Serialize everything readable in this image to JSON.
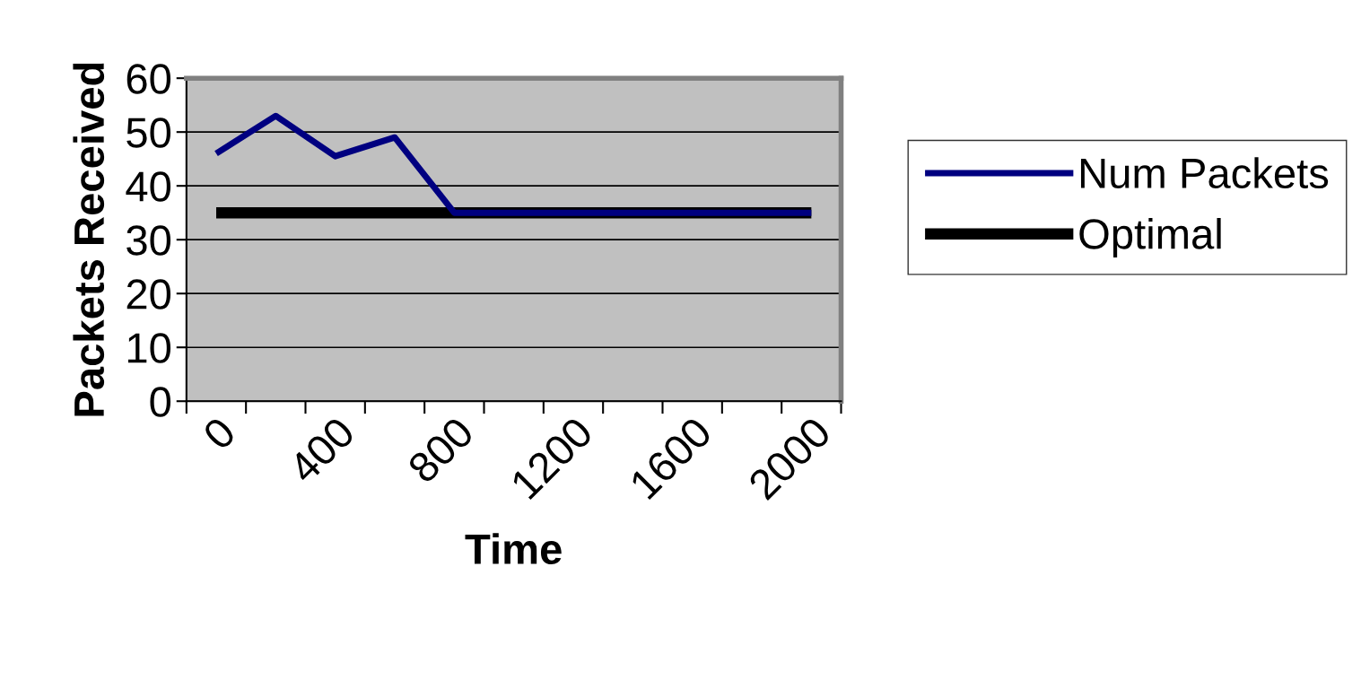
{
  "chart_data": {
    "type": "line",
    "xlabel": "Time",
    "ylabel": "Packets Received",
    "x": [
      0,
      200,
      400,
      600,
      800,
      1000,
      1200,
      1400,
      1600,
      1800,
      2000
    ],
    "series": [
      {
        "name": "Num Packets",
        "color": "#000080",
        "values": [
          46,
          53,
          45.5,
          49,
          35,
          35,
          35,
          35,
          35,
          35,
          35
        ]
      },
      {
        "name": "Optimal",
        "color": "#000000",
        "values": [
          35,
          35,
          35,
          35,
          35,
          35,
          35,
          35,
          35,
          35,
          35
        ]
      }
    ],
    "xlim": [
      -100,
      2100
    ],
    "xticks": [
      0,
      400,
      800,
      1200,
      1600,
      2000,
      {
        "value": -100,
        "label": null
      },
      {
        "value": 100,
        "label": null
      },
      {
        "value": 300,
        "label": null
      },
      {
        "value": 500,
        "label": null
      },
      {
        "value": 700,
        "label": null
      },
      {
        "value": 900,
        "label": null
      },
      {
        "value": 1100,
        "label": null
      },
      {
        "value": 1300,
        "label": null
      },
      {
        "value": 1500,
        "label": null
      },
      {
        "value": 1700,
        "label": null
      },
      {
        "value": 1900,
        "label": null
      },
      {
        "value": 2100,
        "label": null
      }
    ],
    "ylim": [
      0,
      60
    ],
    "yticks": [
      0,
      10,
      20,
      30,
      40,
      50,
      60
    ],
    "grid": "y",
    "legend": "right",
    "marker": "none",
    "line_style": "solid"
  }
}
